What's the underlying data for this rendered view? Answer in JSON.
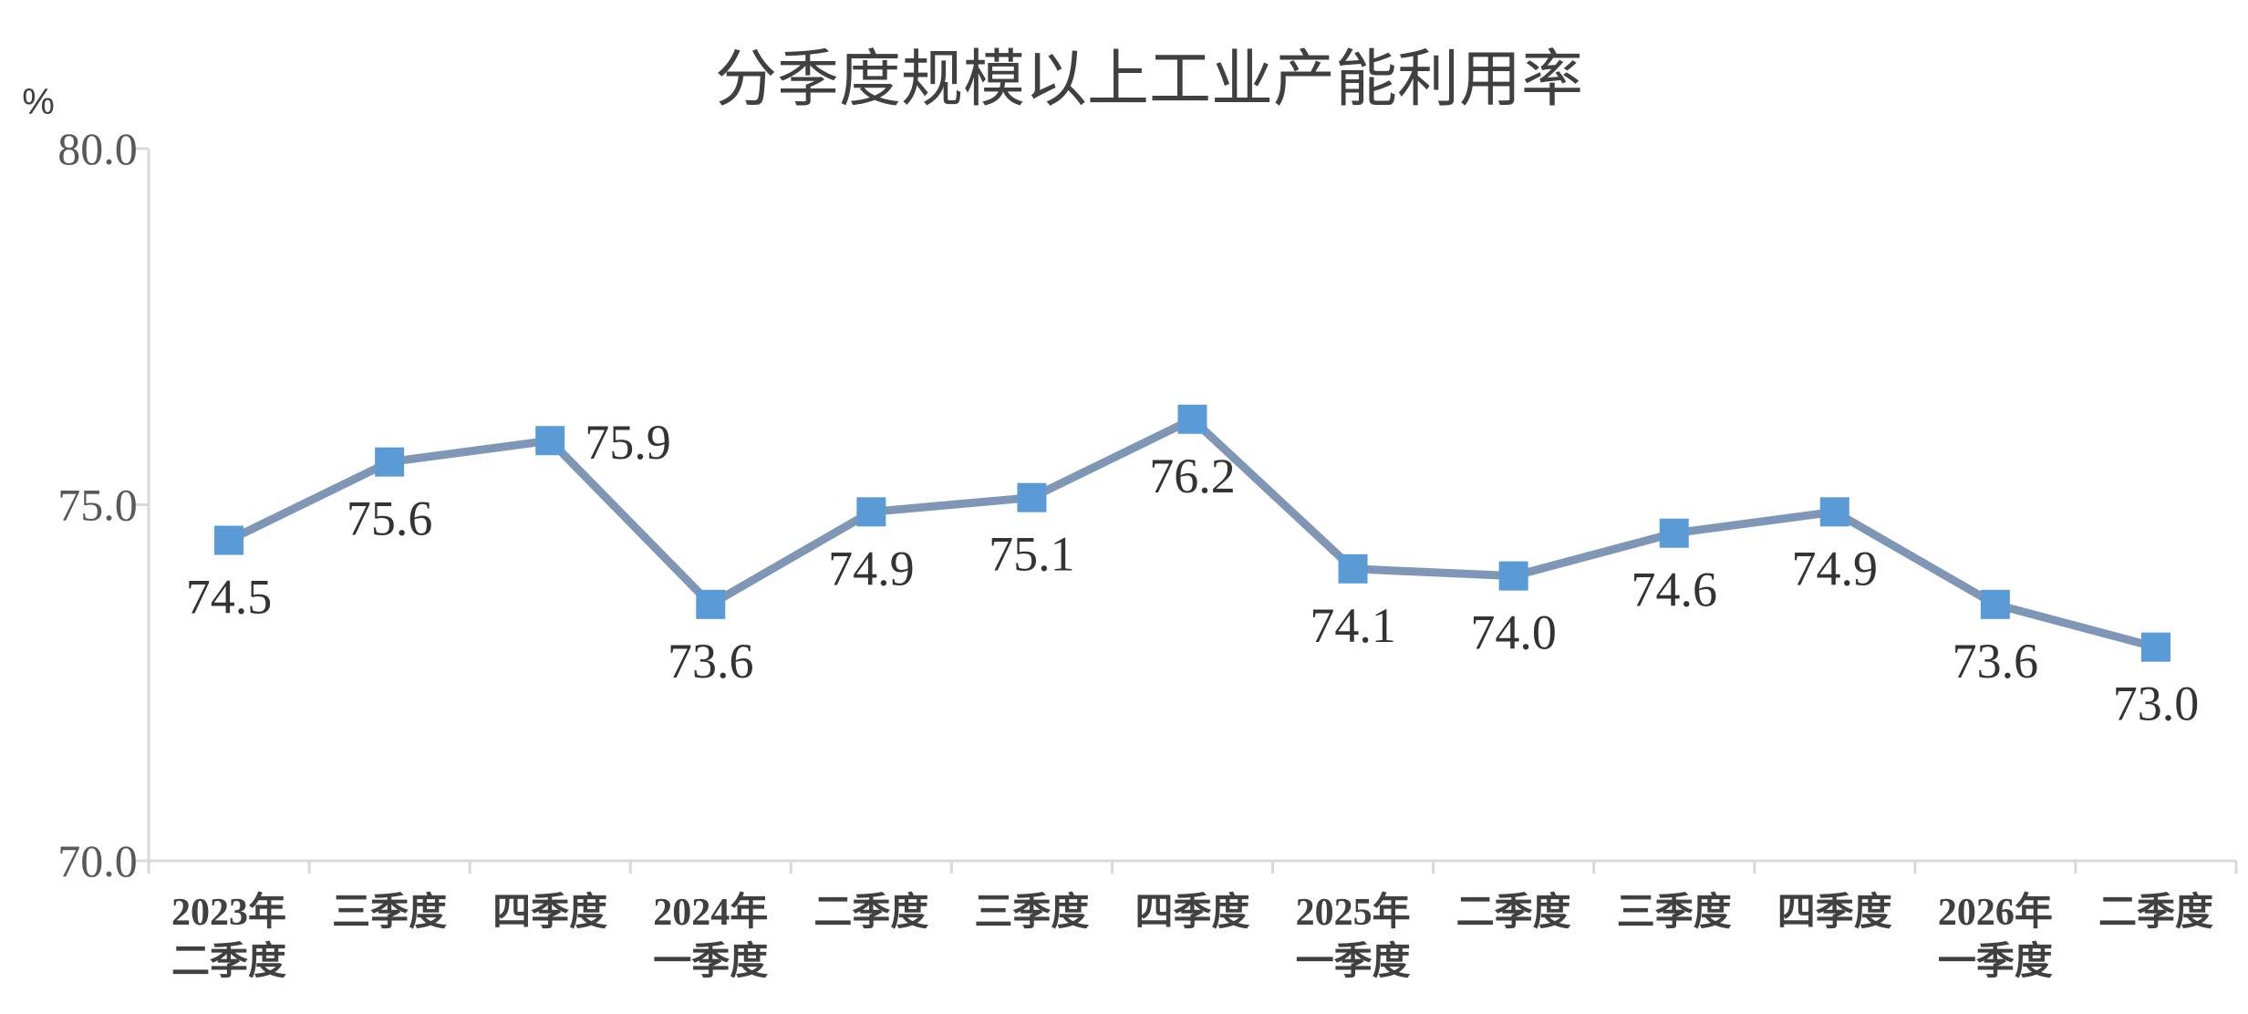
{
  "chart_data": {
    "type": "line",
    "title": "分季度规模以上工业产能利用率",
    "ylabel": "%",
    "xlabel": "",
    "ylim": [
      70.0,
      80.0
    ],
    "yticks": [
      "70.0",
      "75.0",
      "80.0"
    ],
    "grid": false,
    "legend": "none",
    "categories": [
      [
        "2023年",
        "二季度"
      ],
      [
        "三季度"
      ],
      [
        "四季度"
      ],
      [
        "2024年",
        "一季度"
      ],
      [
        "二季度"
      ],
      [
        "三季度"
      ],
      [
        "四季度"
      ],
      [
        "2025年",
        "一季度"
      ],
      [
        "二季度"
      ],
      [
        "三季度"
      ],
      [
        "四季度"
      ],
      [
        "2026年",
        "一季度"
      ],
      [
        "二季度"
      ]
    ],
    "series": [
      {
        "values": [
          74.5,
          75.6,
          75.9,
          73.6,
          74.9,
          75.1,
          76.2,
          74.1,
          74.0,
          74.6,
          74.9,
          73.6,
          73.0
        ],
        "labels": [
          "74.5",
          "75.6",
          "75.9",
          "73.6",
          "74.9",
          "75.1",
          "76.2",
          "74.1",
          "74.0",
          "74.6",
          "74.9",
          "73.6",
          "73.0"
        ],
        "label_positions": [
          "below",
          "below",
          "right",
          "below",
          "below",
          "below",
          "below",
          "below",
          "below",
          "below",
          "below",
          "below",
          "below"
        ],
        "line_color": "#7f96b4",
        "marker_color": "#5b9bd5"
      }
    ]
  }
}
